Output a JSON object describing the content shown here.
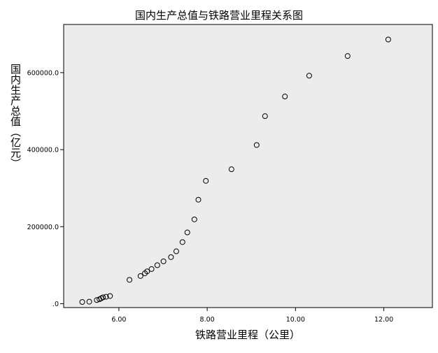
{
  "chart_data": {
    "type": "scatter",
    "title": "国内生产总值与铁路营业里程关系图",
    "xlabel": "铁路营业里程（公里）",
    "ylabel": "国内生产总值（亿元）",
    "xlim": [
      4.75,
      13.1
    ],
    "ylim": [
      -10000,
      725000
    ],
    "x_ticks": [
      6.0,
      8.0,
      10.0,
      12.0
    ],
    "x_tick_labels": [
      "6.00",
      "8.00",
      "10.00",
      "12.00"
    ],
    "y_ticks": [
      0,
      200000,
      400000,
      600000
    ],
    "y_tick_labels": [
      ".0",
      "200000.0",
      "400000.0",
      "600000.0"
    ],
    "grid": false,
    "legend": "none",
    "plot_background": "#ececec",
    "marker_color": "#000000",
    "points": [
      {
        "x": 5.17,
        "y": 4500
      },
      {
        "x": 5.33,
        "y": 5300
      },
      {
        "x": 5.5,
        "y": 9500
      },
      {
        "x": 5.56,
        "y": 11500
      },
      {
        "x": 5.6,
        "y": 14000
      },
      {
        "x": 5.64,
        "y": 16500
      },
      {
        "x": 5.71,
        "y": 18000
      },
      {
        "x": 5.8,
        "y": 20000
      },
      {
        "x": 6.24,
        "y": 62000
      },
      {
        "x": 6.49,
        "y": 72000
      },
      {
        "x": 6.59,
        "y": 79000
      },
      {
        "x": 6.64,
        "y": 84000
      },
      {
        "x": 6.74,
        "y": 90000
      },
      {
        "x": 6.87,
        "y": 100000
      },
      {
        "x": 7.01,
        "y": 110000
      },
      {
        "x": 7.18,
        "y": 121000
      },
      {
        "x": 7.3,
        "y": 136000
      },
      {
        "x": 7.44,
        "y": 160000
      },
      {
        "x": 7.55,
        "y": 185000
      },
      {
        "x": 7.71,
        "y": 219000
      },
      {
        "x": 7.8,
        "y": 270000
      },
      {
        "x": 7.97,
        "y": 319000
      },
      {
        "x": 8.55,
        "y": 349000
      },
      {
        "x": 9.12,
        "y": 412000
      },
      {
        "x": 9.31,
        "y": 487000
      },
      {
        "x": 9.76,
        "y": 538000
      },
      {
        "x": 10.31,
        "y": 592000
      },
      {
        "x": 11.18,
        "y": 643000
      },
      {
        "x": 12.1,
        "y": 686000
      }
    ]
  }
}
